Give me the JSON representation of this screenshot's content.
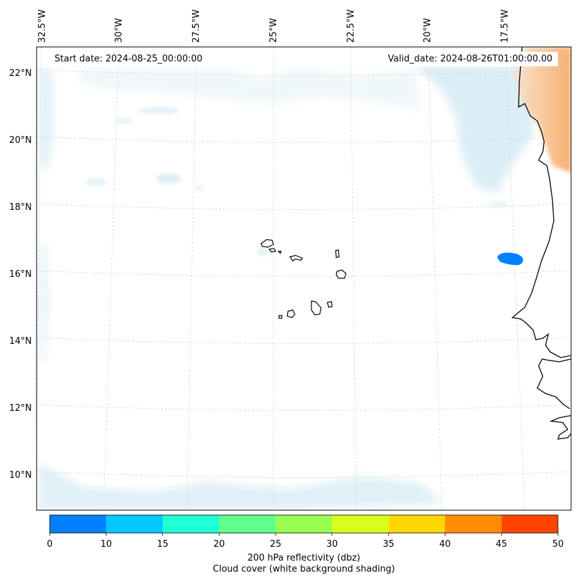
{
  "map": {
    "start_date": "Start date: 2024-08-25_00:00:00",
    "valid_date": "Valid_date: 2024-08-26T01:00:00.00",
    "longitude_labels": [
      "32.5°W",
      "30°W",
      "27.5°W",
      "25°W",
      "22.5°W",
      "20°W",
      "17.5°W"
    ],
    "latitude_labels": [
      "22°N",
      "20°N",
      "18°N",
      "16°N",
      "14°N",
      "12°N",
      "10°N"
    ],
    "features": [
      "cape-verde-islands",
      "west-africa-coastline",
      "reflectivity-cell",
      "cloud-cover-shading",
      "dust-region"
    ]
  },
  "colorbar": {
    "ticks": [
      "0",
      "10",
      "15",
      "20",
      "25",
      "30",
      "35",
      "40",
      "45",
      "50"
    ],
    "colors": [
      "#0080ff",
      "#00c8ff",
      "#20ffd6",
      "#60ff8c",
      "#98ff50",
      "#d8ff1c",
      "#ffd700",
      "#ff8c00",
      "#ff4500"
    ],
    "label_line1": "200 hPa reflectivity (dbz)",
    "label_line2": "Cloud cover (white background shading)"
  }
}
